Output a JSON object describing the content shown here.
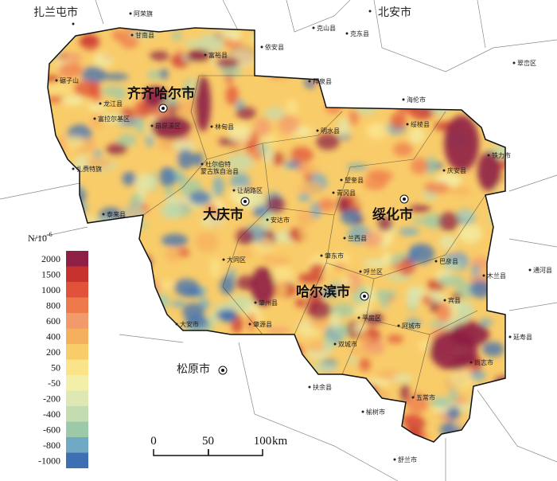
{
  "major_cities": [
    "齐齐哈尔市",
    "大庆市",
    "绥化市",
    "哈尔滨市"
  ],
  "outside_cities": [
    "扎兰屯市",
    "北安市",
    "松原市"
  ],
  "counties": [
    "阿荣旗",
    "甘南县",
    "富裕县",
    "依安县",
    "克山县",
    "克东县",
    "翠峦区",
    "拜泉县",
    "海伦市",
    "碾子山",
    "龙江县",
    "富拉尔基区",
    "昂昂溪区",
    "林甸县",
    "明水县",
    "绥棱县",
    "铁力市",
    "杜尔伯特",
    "蒙古族自治县",
    "扎赉特旗",
    "让胡路区",
    "望奎县",
    "庆安县",
    "青冈县",
    "泰来县",
    "安达市",
    "兰西县",
    "巴彦县",
    "大同区",
    "肇东市",
    "呼兰区",
    "木兰县",
    "通河县",
    "肇州县",
    "宾县",
    "平房区",
    "阿城市",
    "延寿县",
    "大安市",
    "肇源县",
    "双城市",
    "尚志市",
    "扶余县",
    "五常市",
    "榆树市",
    "舒兰市"
  ],
  "legend": {
    "title": "N/10",
    "title_sup": "-6",
    "classes": [
      {
        "label": 2000,
        "color": "#8e1f45"
      },
      {
        "label": 1500,
        "color": "#c8322e"
      },
      {
        "label": 1000,
        "color": "#e0533a"
      },
      {
        "label": 800,
        "color": "#ee7a4c"
      },
      {
        "label": 600,
        "color": "#f29a6c"
      },
      {
        "label": 400,
        "color": "#f5b05d"
      },
      {
        "label": 200,
        "color": "#f9cc6a"
      },
      {
        "label": 50,
        "color": "#fbe38a"
      },
      {
        "label": -50,
        "color": "#f3efa8"
      },
      {
        "label": -200,
        "color": "#dfe8b2"
      },
      {
        "label": -400,
        "color": "#c3dcb0"
      },
      {
        "label": -600,
        "color": "#9ccaa8"
      },
      {
        "label": -800,
        "color": "#6fa9c4"
      },
      {
        "label": -1000,
        "color": "#3f6fb3"
      }
    ]
  },
  "scale_bar": {
    "ticks": [
      0,
      50,
      100
    ],
    "unit": "km"
  }
}
